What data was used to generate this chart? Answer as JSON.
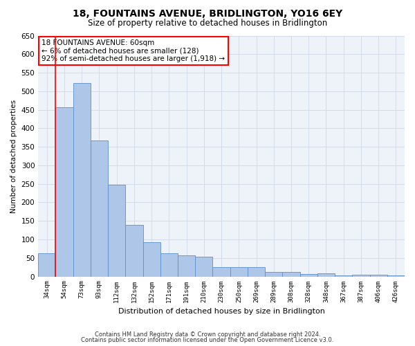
{
  "title": "18, FOUNTAINS AVENUE, BRIDLINGTON, YO16 6EY",
  "subtitle": "Size of property relative to detached houses in Bridlington",
  "xlabel": "Distribution of detached houses by size in Bridlington",
  "ylabel": "Number of detached properties",
  "categories": [
    "34sqm",
    "54sqm",
    "73sqm",
    "93sqm",
    "112sqm",
    "132sqm",
    "152sqm",
    "171sqm",
    "191sqm",
    "210sqm",
    "230sqm",
    "250sqm",
    "269sqm",
    "289sqm",
    "308sqm",
    "328sqm",
    "348sqm",
    "367sqm",
    "387sqm",
    "406sqm",
    "426sqm"
  ],
  "values": [
    62,
    457,
    522,
    368,
    248,
    140,
    92,
    62,
    57,
    53,
    26,
    25,
    25,
    12,
    13,
    6,
    9,
    3,
    4,
    4,
    3
  ],
  "bar_color": "#aec6e8",
  "bar_edge_color": "#5b8fc9",
  "red_line_x": 1.0,
  "annotation_text": "18 FOUNTAINS AVENUE: 60sqm\n← 6% of detached houses are smaller (128)\n92% of semi-detached houses are larger (1,918) →",
  "ylim": [
    0,
    650
  ],
  "yticks": [
    0,
    50,
    100,
    150,
    200,
    250,
    300,
    350,
    400,
    450,
    500,
    550,
    600,
    650
  ],
  "grid_color": "#d0d8e8",
  "background_color": "#eef2f9",
  "footer1": "Contains HM Land Registry data © Crown copyright and database right 2024.",
  "footer2": "Contains public sector information licensed under the Open Government Licence v3.0."
}
